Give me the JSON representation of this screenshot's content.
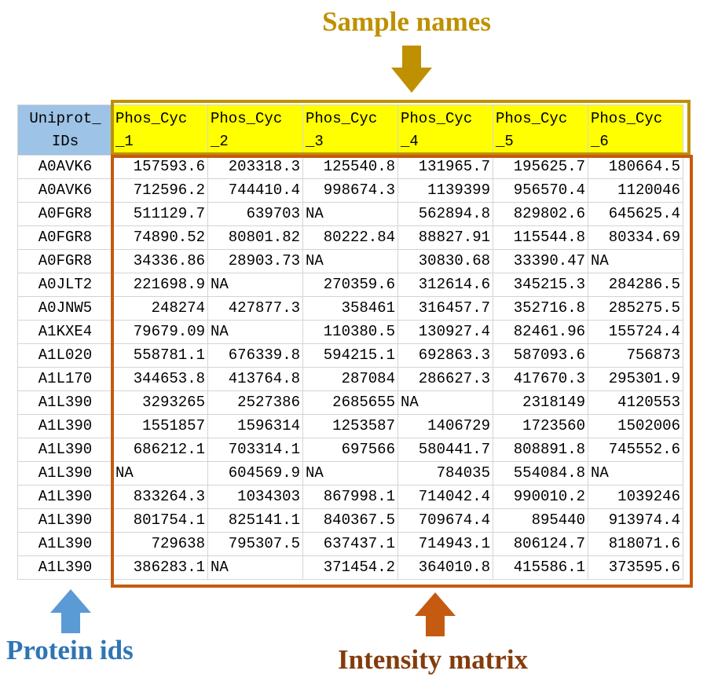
{
  "annotations": {
    "sample_names": "Sample names",
    "protein_ids": "Protein ids",
    "intensity_matrix": "Intensity matrix",
    "colors": {
      "sample": "#BF9000",
      "protein": "#5B9BD5",
      "intensity": "#C55A11",
      "header_id_bg": "#9DC3E6",
      "header_sample_bg": "#FFFF00"
    }
  },
  "table": {
    "id_header": [
      "Uniprot_",
      "IDs"
    ],
    "sample_headers": [
      [
        "Phos_Cyc",
        "_1"
      ],
      [
        "Phos_Cyc",
        "_2"
      ],
      [
        "Phos_Cyc",
        "_3"
      ],
      [
        "Phos_Cyc",
        "_4"
      ],
      [
        "Phos_Cyc",
        "_5"
      ],
      [
        "Phos_Cyc",
        "_6"
      ]
    ],
    "rows": [
      {
        "id": "A0AVK6",
        "values": [
          "157593.6",
          "203318.3",
          "125540.8",
          "131965.7",
          "195625.7",
          "180664.5"
        ]
      },
      {
        "id": "A0AVK6",
        "values": [
          "712596.2",
          "744410.4",
          "998674.3",
          "1139399",
          "956570.4",
          "1120046"
        ]
      },
      {
        "id": "A0FGR8",
        "values": [
          "511129.7",
          "639703",
          "NA",
          "562894.8",
          "829802.6",
          "645625.4"
        ]
      },
      {
        "id": "A0FGR8",
        "values": [
          "74890.52",
          "80801.82",
          "80222.84",
          "88827.91",
          "115544.8",
          "80334.69"
        ]
      },
      {
        "id": "A0FGR8",
        "values": [
          "34336.86",
          "28903.73",
          "NA",
          "30830.68",
          "33390.47",
          "NA"
        ]
      },
      {
        "id": "A0JLT2",
        "values": [
          "221698.9",
          "NA",
          "270359.6",
          "312614.6",
          "345215.3",
          "284286.5"
        ]
      },
      {
        "id": "A0JNW5",
        "values": [
          "248274",
          "427877.3",
          "358461",
          "316457.7",
          "352716.8",
          "285275.5"
        ]
      },
      {
        "id": "A1KXE4",
        "values": [
          "79679.09",
          "NA",
          "110380.5",
          "130927.4",
          "82461.96",
          "155724.4"
        ]
      },
      {
        "id": "A1L020",
        "values": [
          "558781.1",
          "676339.8",
          "594215.1",
          "692863.3",
          "587093.6",
          "756873"
        ]
      },
      {
        "id": "A1L170",
        "values": [
          "344653.8",
          "413764.8",
          "287084",
          "286627.3",
          "417670.3",
          "295301.9"
        ]
      },
      {
        "id": "A1L390",
        "values": [
          "3293265",
          "2527386",
          "2685655",
          "NA",
          "2318149",
          "4120553"
        ]
      },
      {
        "id": "A1L390",
        "values": [
          "1551857",
          "1596314",
          "1253587",
          "1406729",
          "1723560",
          "1502006"
        ]
      },
      {
        "id": "A1L390",
        "values": [
          "686212.1",
          "703314.1",
          "697566",
          "580441.7",
          "808891.8",
          "745552.6"
        ]
      },
      {
        "id": "A1L390",
        "values": [
          "NA",
          "604569.9",
          "NA",
          "784035",
          "554084.8",
          "NA"
        ]
      },
      {
        "id": "A1L390",
        "values": [
          "833264.3",
          "1034303",
          "867998.1",
          "714042.4",
          "990010.2",
          "1039246"
        ]
      },
      {
        "id": "A1L390",
        "values": [
          "801754.1",
          "825141.1",
          "840367.5",
          "709674.4",
          "895440",
          "913974.4"
        ]
      },
      {
        "id": "A1L390",
        "values": [
          "729638",
          "795307.5",
          "637437.1",
          "714943.1",
          "806124.7",
          "818071.6"
        ]
      },
      {
        "id": "A1L390",
        "values": [
          "386283.1",
          "NA",
          "371454.2",
          "364010.8",
          "415586.1",
          "373595.6"
        ]
      }
    ]
  }
}
